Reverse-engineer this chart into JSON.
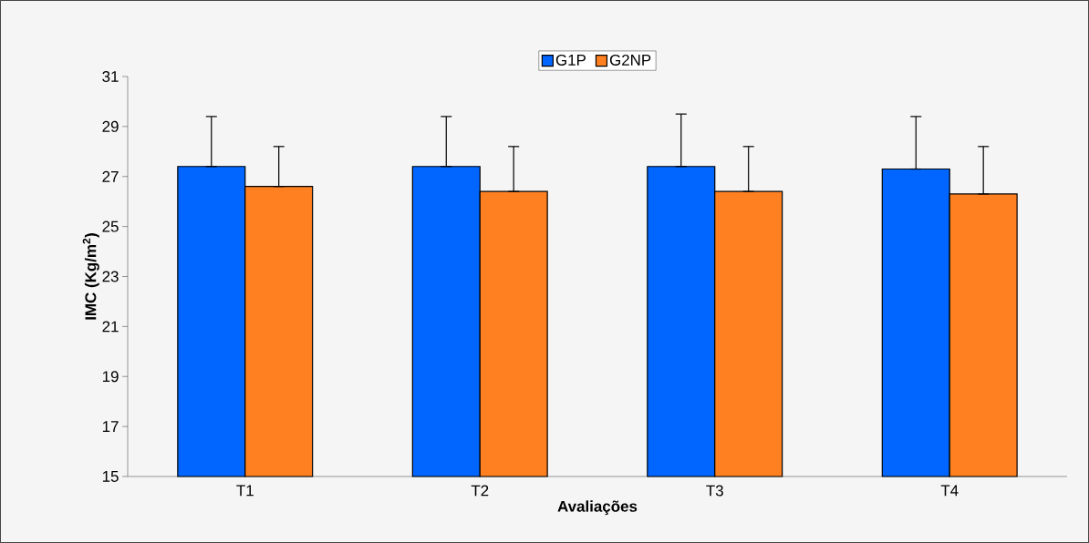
{
  "chart_data": {
    "type": "bar",
    "xlabel": "Avaliações",
    "ylabel": "IMC (Kg/m$^{2}$)",
    "categories": [
      "T1",
      "T2",
      "T3",
      "T4"
    ],
    "series": [
      {
        "name": "G1P",
        "color": "#0066ff",
        "values": [
          27.4,
          27.4,
          27.4,
          27.3
        ],
        "errors": [
          [
            27.4,
            29.4
          ],
          [
            27.4,
            29.4
          ],
          [
            27.4,
            29.5
          ],
          [
            27.3,
            29.4
          ]
        ]
      },
      {
        "name": "G2NP",
        "color": "#ff8020",
        "values": [
          26.6,
          26.4,
          26.4,
          26.3
        ],
        "errors": [
          [
            26.6,
            28.2
          ],
          [
            26.4,
            28.2
          ],
          [
            26.4,
            28.2
          ],
          [
            26.3,
            28.2
          ]
        ]
      }
    ],
    "ylim": [
      15,
      31
    ],
    "yticks": [
      15,
      17,
      19,
      21,
      23,
      25,
      27,
      29,
      31
    ],
    "legend": "top",
    "grid": false
  }
}
